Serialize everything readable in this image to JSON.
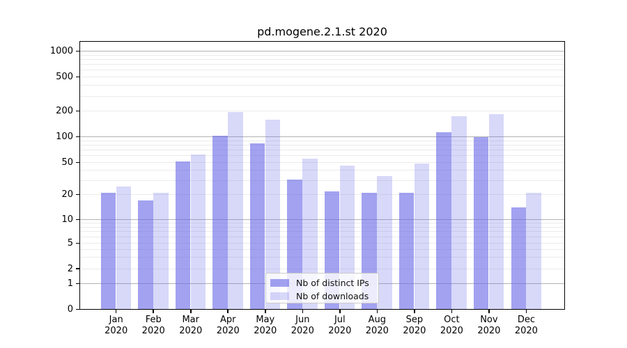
{
  "chart_data": {
    "type": "bar",
    "title": "pd.mogene.2.1.st 2020",
    "x_tick_months": [
      "Jan",
      "Feb",
      "Mar",
      "Apr",
      "May",
      "Jun",
      "Jul",
      "Aug",
      "Sep",
      "Oct",
      "Nov",
      "Dec"
    ],
    "x_tick_year": "2020",
    "y_ticks": [
      0,
      1,
      2,
      5,
      10,
      20,
      50,
      100,
      200,
      500,
      1000
    ],
    "y_scale": "log above 1, linear segment 0-1",
    "ylim": [
      0,
      1300
    ],
    "grid": {
      "major_at": [
        1,
        10,
        100,
        1000
      ],
      "minor_at_subdecades": true
    },
    "series": [
      {
        "name": "Nb of distinct IPs",
        "color": "rgba(100,100,230,0.60)",
        "solid_hex_on_white": "#a2a2f1",
        "values": [
          21,
          17,
          51,
          104,
          84,
          31,
          22,
          21,
          21,
          114,
          100,
          14
        ]
      },
      {
        "name": "Nb of downloads",
        "color": "rgba(100,100,230,0.25)",
        "solid_hex_on_white": "#d8d8f9",
        "values": [
          25,
          21,
          62,
          197,
          160,
          55,
          46,
          34,
          48,
          175,
          184,
          21
        ]
      }
    ],
    "legend_position": "bottom-center"
  },
  "colors": {
    "background": "#ffffff",
    "axis": "#000000",
    "grid_major": "#b3b3b3",
    "grid_minor": "#ebebeb",
    "text": "#000000",
    "legend_border": "#cbcbcb"
  }
}
